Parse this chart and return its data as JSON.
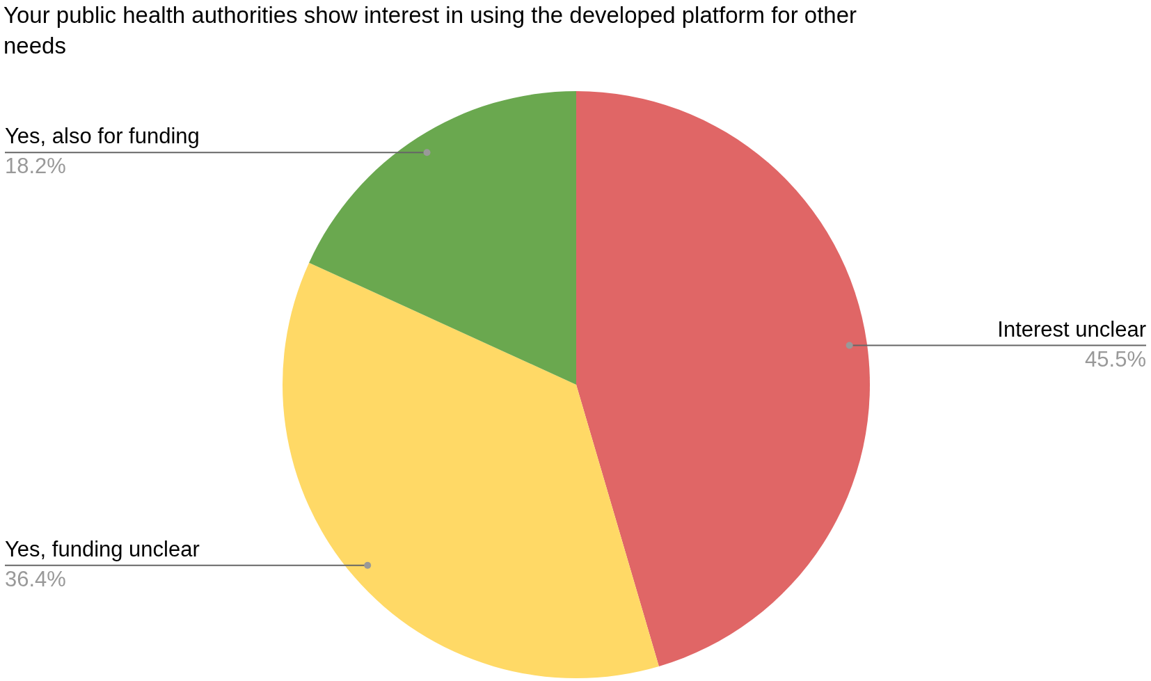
{
  "chart_data": {
    "type": "pie",
    "title": "Your public health authorities show interest in using the developed platform for other needs",
    "categories": [
      "Interest unclear",
      "Yes, funding unclear",
      "Yes, also for funding"
    ],
    "values": [
      45.5,
      36.4,
      18.2
    ],
    "colors": [
      "#e06666",
      "#ffd966",
      "#6aa84f"
    ],
    "value_labels": [
      "45.5%",
      "36.4%",
      "18.2%"
    ]
  }
}
